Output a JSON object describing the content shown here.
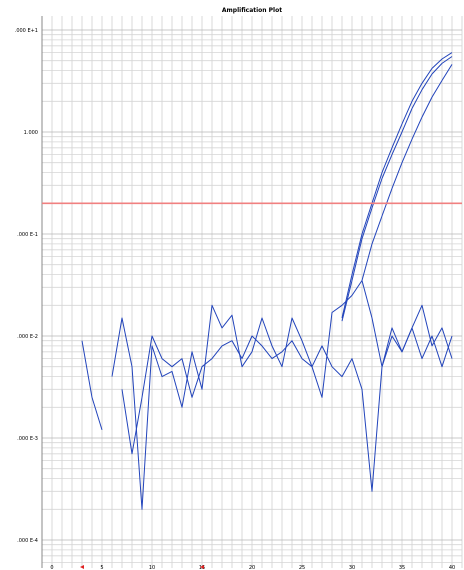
{
  "chart_data": {
    "type": "line",
    "title": "Amplification Plot",
    "xlabel": "",
    "ylabel": "",
    "y_scale": "log",
    "xlim": [
      -1,
      41
    ],
    "ylim": [
      0.0001,
      10
    ],
    "grid": true,
    "ytick_labels": [
      {
        "value": 10,
        "label": ".000 E+1"
      },
      {
        "value": 1,
        "label": "1.000"
      },
      {
        "value": 0.1,
        "label": ".000 E-1"
      },
      {
        "value": 0.01,
        "label": ".000 E-2"
      },
      {
        "value": 0.001,
        "label": ".000 E-3"
      },
      {
        "value": 0.0001,
        "label": ".000 E-4"
      }
    ],
    "xtick_labels": [
      {
        "value": 0,
        "label": "0"
      },
      {
        "value": 5,
        "label": "5"
      },
      {
        "value": 10,
        "label": "10"
      },
      {
        "value": 15,
        "label": "15"
      },
      {
        "value": 20,
        "label": "20"
      },
      {
        "value": 25,
        "label": "25"
      },
      {
        "value": 30,
        "label": "30"
      },
      {
        "value": 35,
        "label": "35"
      },
      {
        "value": 40,
        "label": "40"
      }
    ],
    "threshold": {
      "value": 0.2,
      "color": "#f08080"
    },
    "line_color": "#2244bb",
    "series": [
      {
        "x": [
          3,
          4,
          5
        ],
        "y": [
          0.009,
          0.0025,
          0.0012
        ]
      },
      {
        "x": [
          6,
          7,
          8,
          9,
          10,
          11,
          12,
          13,
          14,
          15,
          16,
          17,
          18,
          19,
          20,
          21,
          22,
          23,
          24,
          25,
          26,
          27,
          28,
          29,
          30,
          31,
          32,
          33,
          34,
          35,
          36,
          37,
          38,
          39,
          40
        ],
        "y": [
          0.004,
          0.015,
          0.005,
          0.0002,
          0.008,
          0.004,
          0.0045,
          0.002,
          0.007,
          0.003,
          0.02,
          0.012,
          0.016,
          0.005,
          0.007,
          0.015,
          0.008,
          0.005,
          0.015,
          0.009,
          0.005,
          0.0025,
          0.017,
          0.02,
          0.025,
          0.035,
          0.015,
          0.005,
          0.012,
          0.007,
          0.012,
          0.02,
          0.008,
          0.012,
          0.006
        ]
      },
      {
        "x": [
          7,
          8,
          9,
          10,
          11,
          12,
          13,
          14,
          15,
          16,
          17,
          18,
          19,
          20,
          21,
          22,
          23,
          24,
          25,
          26,
          27,
          28,
          29,
          30,
          31,
          32,
          33,
          34,
          35,
          36,
          37,
          38,
          39,
          40
        ],
        "y": [
          0.003,
          0.0007,
          0.0025,
          0.01,
          0.006,
          0.005,
          0.006,
          0.0025,
          0.005,
          0.006,
          0.008,
          0.009,
          0.006,
          0.01,
          0.008,
          0.006,
          0.007,
          0.009,
          0.006,
          0.005,
          0.008,
          0.005,
          0.004,
          0.006,
          0.003,
          0.0003,
          0.005,
          0.01,
          0.007,
          0.012,
          0.006,
          0.01,
          0.005,
          0.01
        ]
      },
      {
        "x": [
          29,
          30,
          31,
          32,
          33,
          34,
          35,
          36,
          37,
          38,
          39,
          40
        ],
        "y": [
          0.015,
          0.04,
          0.1,
          0.2,
          0.4,
          0.7,
          1.2,
          2.0,
          3.0,
          4.2,
          5.2,
          6.0
        ]
      },
      {
        "x": [
          29,
          30,
          31,
          32,
          33,
          34,
          35,
          36,
          37,
          38,
          39,
          40
        ],
        "y": [
          0.014,
          0.035,
          0.09,
          0.18,
          0.35,
          0.6,
          1.0,
          1.7,
          2.6,
          3.7,
          4.7,
          5.5
        ]
      },
      {
        "x": [
          31,
          32,
          33,
          34,
          35,
          36,
          37,
          38,
          39,
          40
        ],
        "y": [
          0.035,
          0.08,
          0.15,
          0.28,
          0.5,
          0.85,
          1.4,
          2.2,
          3.2,
          4.6
        ]
      }
    ]
  }
}
